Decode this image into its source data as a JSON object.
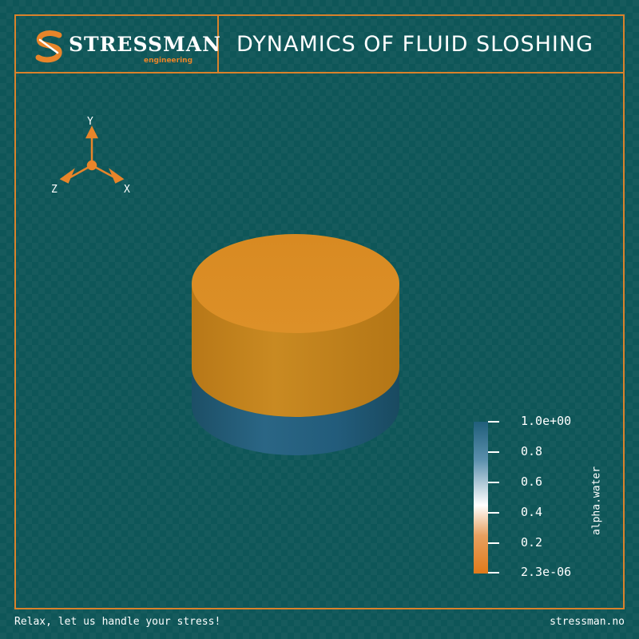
{
  "header": {
    "brand": "STRESSMAN",
    "brand_sub": "engineering",
    "logo_icon": "stressman-s-logo",
    "title": "DYNAMICS OF FLUID SLOSHING"
  },
  "axes_gizmo": {
    "x": "X",
    "y": "Y",
    "z": "Z"
  },
  "colorbar": {
    "title": "alpha.water",
    "ticks": [
      "1.0e+00",
      "0.8",
      "0.6",
      "0.4",
      "0.2",
      "2.3e-06"
    ],
    "colors": {
      "top": "#1f5e7a",
      "upper": "#5a8fac",
      "mid": "#ffffff",
      "lower": "#e8a060",
      "bottom": "#e07a1a"
    }
  },
  "scene": {
    "object": "cylindrical-tank",
    "fluid_fill_fraction": 0.37,
    "colors": {
      "air": "#d8881e",
      "water": "#1e5a7a"
    }
  },
  "footer": {
    "tagline": "Relax, let us handle your stress!",
    "site": "stressman.no"
  },
  "theme": {
    "background": "#0e5658",
    "accent": "#d9822b"
  }
}
